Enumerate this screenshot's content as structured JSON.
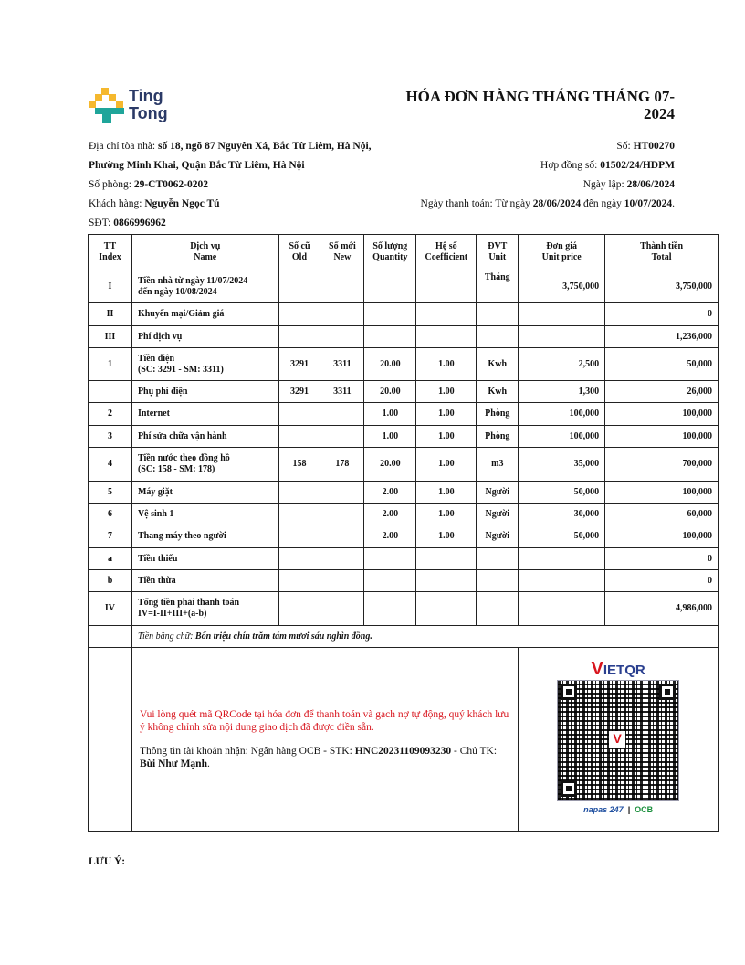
{
  "logo": {
    "text_line1": "Ting",
    "text_line2": "Tong",
    "colors": {
      "yellow": "#f5b82e",
      "teal": "#1fa59a"
    }
  },
  "title": "HÓA ĐƠN HÀNG THÁNG THÁNG 07-2024",
  "left_info": {
    "address_label": "Địa chỉ tòa nhà: ",
    "address_line1": "số 18, ngõ 87 Nguyên Xá, Bắc Từ Liêm, Hà Nội,",
    "address_line2": "Phường Minh Khai, Quận Bắc Từ Liêm, Hà Nội",
    "room_label": "Số phòng: ",
    "room": "29-CT0062-0202",
    "customer_label": "Khách hàng: ",
    "customer": "Nguyễn Ngọc Tú",
    "phone_label": "SĐT: ",
    "phone": "0866996962"
  },
  "right_info": {
    "no_label": "Số: ",
    "no": "HT00270",
    "contract_label": "Hợp đồng số: ",
    "contract": "01502/24/HDPM",
    "date_label": "Ngày lập: ",
    "date": "28/06/2024",
    "pay_label": "Ngày thanh toán: Từ ngày ",
    "pay_from": "28/06/2024",
    "pay_mid": " đến ngày ",
    "pay_to": "10/07/2024",
    "pay_end": "."
  },
  "table": {
    "headers": [
      [
        "TT",
        "Index"
      ],
      [
        "Dịch vụ",
        "Name"
      ],
      [
        "Số cũ",
        "Old"
      ],
      [
        "Số mới",
        "New"
      ],
      [
        "Số lượng",
        "Quantity"
      ],
      [
        "Hệ số",
        "Coefficient"
      ],
      [
        "ĐVT",
        "Unit"
      ],
      [
        "Đơn giá",
        "Unit price"
      ],
      [
        "Thành tiền",
        "Total"
      ]
    ],
    "rows": [
      [
        "I",
        "Tiền nhà từ ngày 11/07/2024\nđến ngày 10/08/2024",
        "",
        "",
        "",
        "",
        "Tháng",
        "3,750,000",
        "3,750,000"
      ],
      [
        "II",
        "Khuyến mại/Giảm giá",
        "",
        "",
        "",
        "",
        "",
        "",
        "0"
      ],
      [
        "III",
        "Phí dịch vụ",
        "",
        "",
        "",
        "",
        "",
        "",
        "1,236,000"
      ],
      [
        "1",
        "Tiền điện\n(SC: 3291 - SM: 3311)",
        "3291",
        "3311",
        "20.00",
        "1.00",
        "Kwh",
        "2,500",
        "50,000"
      ],
      [
        "",
        "Phụ phí điện",
        "3291",
        "3311",
        "20.00",
        "1.00",
        "Kwh",
        "1,300",
        "26,000"
      ],
      [
        "2",
        "Internet",
        "",
        "",
        "1.00",
        "1.00",
        "Phòng",
        "100,000",
        "100,000"
      ],
      [
        "3",
        "Phí sửa chữa vận hành",
        "",
        "",
        "1.00",
        "1.00",
        "Phòng",
        "100,000",
        "100,000"
      ],
      [
        "4",
        "Tiền nước theo đồng hồ\n(SC: 158 - SM: 178)",
        "158",
        "178",
        "20.00",
        "1.00",
        "m3",
        "35,000",
        "700,000"
      ],
      [
        "5",
        "Máy giặt",
        "",
        "",
        "2.00",
        "1.00",
        "Người",
        "50,000",
        "100,000"
      ],
      [
        "6",
        "Vệ sinh 1",
        "",
        "",
        "2.00",
        "1.00",
        "Người",
        "30,000",
        "60,000"
      ],
      [
        "7",
        "Thang máy theo người",
        "",
        "",
        "2.00",
        "1.00",
        "Người",
        "50,000",
        "100,000"
      ],
      [
        "a",
        "Tiền thiếu",
        "",
        "",
        "",
        "",
        "",
        "",
        "0"
      ],
      [
        "b",
        "Tiền thừa",
        "",
        "",
        "",
        "",
        "",
        "",
        "0"
      ],
      [
        "IV",
        "Tổng tiền phải thanh toán\nIV=I-II+III+(a-b)",
        "",
        "",
        "",
        "",
        "",
        "",
        "4,986,000"
      ]
    ],
    "words_label": "Tiền bằng chữ: ",
    "words": "Bốn triệu chín trăm tám mươi sáu nghìn đồng."
  },
  "payment": {
    "notice": "Vui lòng quét mã QRCode tại hóa đơn để thanh toán và gạch nợ tự động, quý khách lưu ý không chỉnh sửa nội dung giao dịch đã được điền sẵn.",
    "acct_label": "Thông tin tài khoản nhận: Ngân hàng OCB - STK: ",
    "acct_no": "HNC20231109093230",
    "holder_label": " - Chủ TK: ",
    "holder": "Bùi Như Mạnh",
    "end": ".",
    "vietqr_v": "V",
    "vietqr_rest": "IETQR",
    "napas": "napas 247",
    "ocb": "OCB"
  },
  "note_label": "LƯU Ý:"
}
